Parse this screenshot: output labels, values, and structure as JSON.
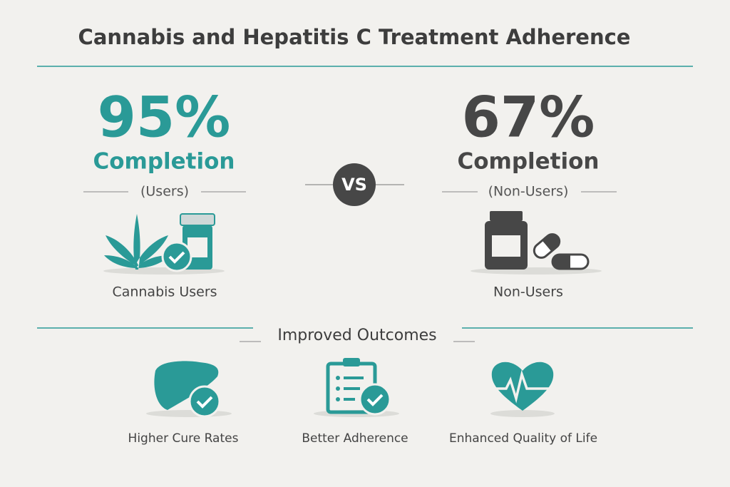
{
  "header": {
    "title": "Cannabis and Hepatitis C Treatment Adherence"
  },
  "comparison": {
    "left": {
      "stat": "95%",
      "label": "Completion",
      "group": "(Users)",
      "caption": "Cannabis Users"
    },
    "divider": "VS",
    "right": {
      "stat": "67%",
      "label": "Completion",
      "group": "(Non-Users)",
      "caption": "Non-Users"
    }
  },
  "outcomes": {
    "title": "Improved Outcomes",
    "items": [
      {
        "label": "Higher Cure Rates"
      },
      {
        "label": "Better Adherence"
      },
      {
        "label": "Enhanced Quality of Life"
      }
    ]
  }
}
